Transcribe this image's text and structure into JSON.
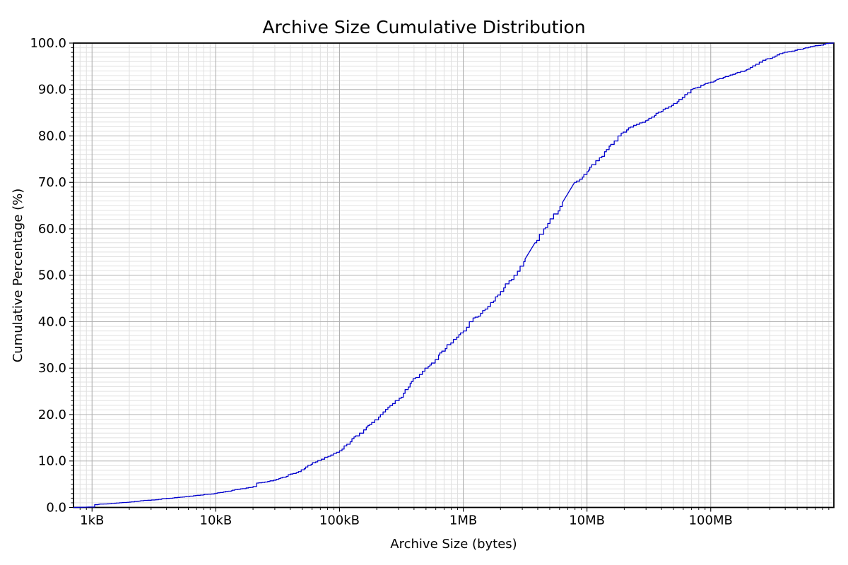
{
  "figure": {
    "background": "#ffffff"
  },
  "chart_data": {
    "type": "line",
    "title": "Archive Size Cumulative Distribution",
    "xlabel": "Archive Size (bytes)",
    "ylabel": "Cumulative Percentage (%)",
    "x_scale": "log",
    "xlim_bytes": [
      708,
      989000000
    ],
    "ylim": [
      0,
      100
    ],
    "grid": "major-and-minor",
    "legend": "none",
    "line_color": "#0000cd",
    "grid_major_color": "#b0b0b0",
    "grid_minor_color": "#e0e0e0",
    "frame_color": "#000000",
    "x_ticks": [
      {
        "value": 1000,
        "label": "1kB"
      },
      {
        "value": 10000,
        "label": "10kB"
      },
      {
        "value": 100000,
        "label": "100kB"
      },
      {
        "value": 1000000,
        "label": "1MB"
      },
      {
        "value": 10000000,
        "label": "10MB"
      },
      {
        "value": 100000000,
        "label": "100MB"
      }
    ],
    "y_ticks": [
      {
        "value": 0,
        "label": "0.0"
      },
      {
        "value": 10,
        "label": "10.0"
      },
      {
        "value": 20,
        "label": "20.0"
      },
      {
        "value": 30,
        "label": "30.0"
      },
      {
        "value": 40,
        "label": "40.0"
      },
      {
        "value": 50,
        "label": "50.0"
      },
      {
        "value": 60,
        "label": "60.0"
      },
      {
        "value": 70,
        "label": "70.0"
      },
      {
        "value": 80,
        "label": "80.0"
      },
      {
        "value": 90,
        "label": "90.0"
      },
      {
        "value": 100,
        "label": "100.0"
      }
    ],
    "minor_y_step_pct": 1,
    "minor_x_mantissas": [
      2,
      3,
      4,
      5,
      6,
      7,
      8,
      9
    ],
    "points": [
      [
        708,
        0.0
      ],
      [
        980,
        0.1
      ],
      [
        1050,
        0.6
      ],
      [
        1510,
        0.9
      ],
      [
        2000,
        1.15
      ],
      [
        2820,
        1.55
      ],
      [
        3980,
        1.95
      ],
      [
        5620,
        2.3
      ],
      [
        7940,
        2.75
      ],
      [
        10000,
        3.05
      ],
      [
        12600,
        3.5
      ],
      [
        15800,
        4.0
      ],
      [
        20000,
        4.5
      ],
      [
        21400,
        5.25
      ],
      [
        26300,
        5.6
      ],
      [
        34700,
        6.5
      ],
      [
        44700,
        7.5
      ],
      [
        58900,
        9.3
      ],
      [
        75900,
        10.8
      ],
      [
        100000,
        12.2
      ],
      [
        126000,
        14.8
      ],
      [
        145000,
        16.0
      ],
      [
        182000,
        18.3
      ],
      [
        214000,
        20.0
      ],
      [
        282000,
        23.0
      ],
      [
        372000,
        26.7
      ],
      [
        490000,
        30.0
      ],
      [
        631000,
        32.8
      ],
      [
        832000,
        36.2
      ],
      [
        1000000,
        38.0
      ],
      [
        1120000,
        40.0
      ],
      [
        1200000,
        40.8
      ],
      [
        1320000,
        41.2
      ],
      [
        1580000,
        43.3
      ],
      [
        2000000,
        46.5
      ],
      [
        2570000,
        50.0
      ],
      [
        3160000,
        53.5
      ],
      [
        3800000,
        57.0
      ],
      [
        4470000,
        60.0
      ],
      [
        5370000,
        63.2
      ],
      [
        6310000,
        65.6
      ],
      [
        7940000,
        70.0
      ],
      [
        10000000,
        72.3
      ],
      [
        12600000,
        75.3
      ],
      [
        15100000,
        77.8
      ],
      [
        17800000,
        80.0
      ],
      [
        20900000,
        81.3
      ],
      [
        25100000,
        82.5
      ],
      [
        31600000,
        83.8
      ],
      [
        39800000,
        85.3
      ],
      [
        50100000,
        87.0
      ],
      [
        58900000,
        88.3
      ],
      [
        69200000,
        90.0
      ],
      [
        83200000,
        90.9
      ],
      [
        100000000,
        91.6
      ],
      [
        126000000,
        92.6
      ],
      [
        158000000,
        93.5
      ],
      [
        200000000,
        94.4
      ],
      [
        263000000,
        96.3
      ],
      [
        331000000,
        97.2
      ],
      [
        417000000,
        98.1
      ],
      [
        501000000,
        98.6
      ],
      [
        617000000,
        99.1
      ],
      [
        741000000,
        99.5
      ],
      [
        851000000,
        99.9
      ],
      [
        933000000,
        100.0
      ],
      [
        989000000,
        100.0
      ]
    ]
  }
}
